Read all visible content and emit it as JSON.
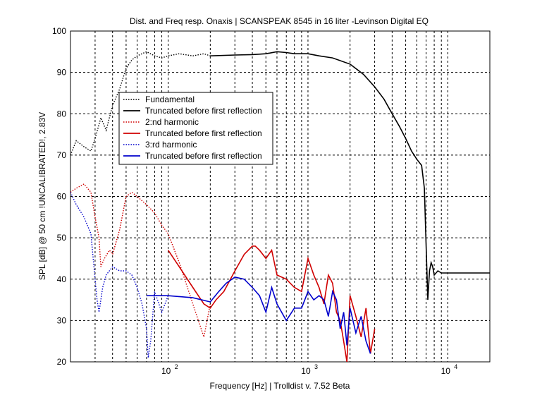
{
  "chart_data": {
    "type": "line",
    "title": "Dist. and Freq resp. Onaxis | SCANSPEAK 8545 in 16 liter -Levinson Digital EQ",
    "xlabel": "Frequency [Hz] | Trolldist v. 7.52 Beta",
    "ylabel": "SPL [dB] @ 50 cm !UNCALIBRATED!, 2.83V",
    "xscale": "log",
    "xlim": [
      20,
      20000
    ],
    "ylim": [
      20,
      100
    ],
    "grid": true,
    "legend_position": "upper-left",
    "x_ticks": [
      {
        "base": "10",
        "exp": "2"
      },
      {
        "base": "10",
        "exp": "3"
      },
      {
        "base": "10",
        "exp": "4"
      }
    ],
    "y_ticks": [
      "20",
      "30",
      "40",
      "50",
      "60",
      "70",
      "80",
      "90",
      "100"
    ],
    "series": [
      {
        "name": "Fundamental",
        "color": "#000000",
        "style": "dotted",
        "x": [
          20,
          22,
          25,
          28,
          30,
          33,
          36,
          40,
          45,
          50,
          55,
          60,
          70,
          80,
          90,
          100,
          120,
          150,
          180,
          200
        ],
        "y": [
          70,
          73.5,
          72,
          71,
          74,
          79,
          76,
          82,
          86,
          91,
          93,
          94,
          95,
          94,
          93.5,
          94,
          94.5,
          94,
          94.5,
          94
        ]
      },
      {
        "name": "Truncated before first reflection",
        "color": "#000000",
        "style": "solid",
        "x": [
          200,
          300,
          400,
          500,
          600,
          700,
          800,
          1000,
          1200,
          1500,
          2000,
          2500,
          3000,
          3500,
          4000,
          4500,
          5000,
          5500,
          6000,
          6500,
          6800,
          7000,
          7200,
          7400,
          7600,
          7800,
          8000,
          8500,
          9000,
          10000,
          12000,
          15000,
          20000
        ],
        "y": [
          94,
          94.2,
          94.3,
          94.5,
          95,
          94.8,
          94.5,
          94.5,
          94,
          93.5,
          92,
          89.5,
          86.5,
          83.5,
          80,
          77,
          74,
          71,
          69,
          67.5,
          62,
          48,
          35,
          42,
          44,
          43,
          41,
          42,
          41.5,
          41.5,
          41.5,
          41.5,
          41.5
        ]
      },
      {
        "name": "2:nd harmonic",
        "color": "#d00000",
        "style": "dotted",
        "x": [
          20,
          22,
          25,
          28,
          30,
          32,
          33,
          35,
          38,
          40,
          45,
          50,
          55,
          60,
          70,
          80,
          90,
          100,
          120,
          150,
          180,
          200
        ],
        "y": [
          61,
          62,
          63,
          61,
          55,
          50,
          43,
          45,
          47,
          46,
          52,
          60,
          61,
          60,
          58,
          56,
          53,
          51,
          44,
          34,
          26,
          34
        ]
      },
      {
        "name": "Truncated before first reflection",
        "color": "#d00000",
        "style": "solid",
        "x": [
          100,
          120,
          150,
          180,
          200,
          220,
          250,
          300,
          350,
          400,
          420,
          450,
          500,
          550,
          600,
          700,
          800,
          900,
          1000,
          1100,
          1200,
          1300,
          1400,
          1500,
          1600,
          1700,
          1800,
          1900,
          2000,
          2200,
          2400,
          2600,
          2800,
          3000
        ],
        "y": [
          47,
          43,
          38,
          34,
          33,
          35,
          37,
          42,
          46,
          48,
          48,
          47,
          45,
          47,
          41,
          40,
          38,
          37,
          45,
          41,
          38,
          34,
          41,
          39,
          32,
          30,
          25,
          20,
          36,
          31,
          26,
          33,
          22,
          28
        ]
      },
      {
        "name": "3:rd harmonic",
        "color": "#0000cc",
        "style": "dotted",
        "x": [
          20,
          22,
          25,
          28,
          30,
          31,
          32,
          34,
          36,
          40,
          45,
          50,
          55,
          60,
          65,
          70,
          72,
          75,
          80,
          90,
          100
        ],
        "y": [
          61,
          58,
          55,
          51,
          40,
          35,
          32,
          38,
          41,
          43,
          42,
          42,
          41,
          38,
          34,
          28,
          21,
          25,
          37,
          32,
          36
        ]
      },
      {
        "name": "Truncated before first reflection",
        "color": "#0000cc",
        "style": "solid",
        "x": [
          70,
          100,
          150,
          200,
          230,
          260,
          300,
          350,
          400,
          450,
          500,
          550,
          600,
          700,
          800,
          900,
          1000,
          1100,
          1200,
          1300,
          1400,
          1500,
          1600,
          1700,
          1800,
          1900,
          2000,
          2200,
          2400,
          2600,
          2800
        ],
        "y": [
          36,
          36,
          35.5,
          34.5,
          37,
          39,
          40.5,
          40,
          38,
          36,
          32,
          38,
          34,
          30,
          33,
          33,
          37,
          35,
          36,
          35,
          31,
          37,
          35,
          28,
          32,
          24,
          33,
          27,
          31,
          25,
          22
        ]
      }
    ]
  }
}
